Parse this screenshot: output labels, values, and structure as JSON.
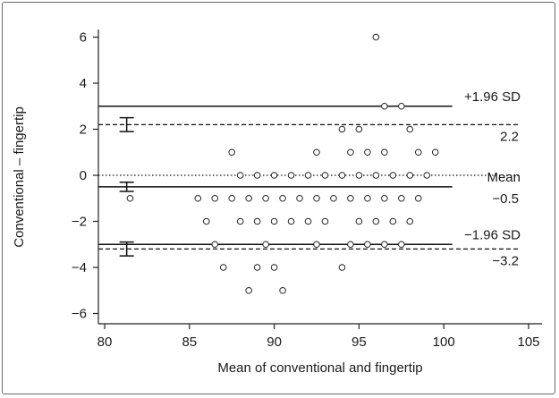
{
  "chart_data": {
    "type": "scatter",
    "title": "",
    "xlabel": "Mean of conventional and fingertip",
    "ylabel": "Conventional – fingertip",
    "xlim": [
      80,
      105
    ],
    "ylim": [
      -6.5,
      6.5
    ],
    "x_ticks": [
      80,
      85,
      90,
      95,
      100,
      105
    ],
    "y_ticks": [
      -6,
      -4,
      -2,
      0,
      2,
      4,
      6
    ],
    "x_tick_labels": [
      "80",
      "85",
      "90",
      "95",
      "100",
      "105"
    ],
    "y_tick_labels": [
      "−6",
      "−4",
      "−2",
      "0",
      "2",
      "4",
      "6"
    ],
    "grid": false,
    "series": [
      {
        "points": [
          {
            "x": 81.5,
            "y": -1
          },
          {
            "x": 96,
            "y": 6
          },
          {
            "x": 96.5,
            "y": 3
          },
          {
            "x": 97.5,
            "y": 3
          },
          {
            "x": 94,
            "y": 2
          },
          {
            "x": 95,
            "y": 2
          },
          {
            "x": 98,
            "y": 2
          },
          {
            "x": 87.5,
            "y": 1
          },
          {
            "x": 92.5,
            "y": 1
          },
          {
            "x": 94.5,
            "y": 1
          },
          {
            "x": 95.5,
            "y": 1
          },
          {
            "x": 96.5,
            "y": 1
          },
          {
            "x": 98.5,
            "y": 1
          },
          {
            "x": 99.5,
            "y": 1
          },
          {
            "x": 88,
            "y": 0
          },
          {
            "x": 89,
            "y": 0
          },
          {
            "x": 90,
            "y": 0
          },
          {
            "x": 91,
            "y": 0
          },
          {
            "x": 92,
            "y": 0
          },
          {
            "x": 93,
            "y": 0
          },
          {
            "x": 94,
            "y": 0
          },
          {
            "x": 95,
            "y": 0
          },
          {
            "x": 96,
            "y": 0
          },
          {
            "x": 97,
            "y": 0
          },
          {
            "x": 98,
            "y": 0
          },
          {
            "x": 99,
            "y": 0
          },
          {
            "x": 85.5,
            "y": -1
          },
          {
            "x": 86.5,
            "y": -1
          },
          {
            "x": 87.5,
            "y": -1
          },
          {
            "x": 88.5,
            "y": -1
          },
          {
            "x": 89.5,
            "y": -1
          },
          {
            "x": 90.5,
            "y": -1
          },
          {
            "x": 91.5,
            "y": -1
          },
          {
            "x": 92.5,
            "y": -1
          },
          {
            "x": 93.5,
            "y": -1
          },
          {
            "x": 94.5,
            "y": -1
          },
          {
            "x": 95.5,
            "y": -1
          },
          {
            "x": 96.5,
            "y": -1
          },
          {
            "x": 97.5,
            "y": -1
          },
          {
            "x": 98.5,
            "y": -1
          },
          {
            "x": 86,
            "y": -2
          },
          {
            "x": 88,
            "y": -2
          },
          {
            "x": 89,
            "y": -2
          },
          {
            "x": 90,
            "y": -2
          },
          {
            "x": 91,
            "y": -2
          },
          {
            "x": 92,
            "y": -2
          },
          {
            "x": 93,
            "y": -2
          },
          {
            "x": 95,
            "y": -2
          },
          {
            "x": 96,
            "y": -2
          },
          {
            "x": 97,
            "y": -2
          },
          {
            "x": 98,
            "y": -2
          },
          {
            "x": 86.5,
            "y": -3
          },
          {
            "x": 89.5,
            "y": -3
          },
          {
            "x": 92.5,
            "y": -3
          },
          {
            "x": 94.5,
            "y": -3
          },
          {
            "x": 95.5,
            "y": -3
          },
          {
            "x": 96.5,
            "y": -3
          },
          {
            "x": 97.5,
            "y": -3
          },
          {
            "x": 87,
            "y": -4
          },
          {
            "x": 89,
            "y": -4
          },
          {
            "x": 90,
            "y": -4
          },
          {
            "x": 94,
            "y": -4
          },
          {
            "x": 88.5,
            "y": -5
          },
          {
            "x": 90.5,
            "y": -5
          }
        ]
      }
    ],
    "reference_lines": [
      {
        "y": 3.0,
        "style": "solid",
        "label": "+1.96 SD"
      },
      {
        "y": 2.2,
        "style": "dashed",
        "label": "2.2"
      },
      {
        "y": 0,
        "style": "dotted",
        "label": ""
      },
      {
        "y": -0.5,
        "style": "solid",
        "label": "Mean"
      },
      {
        "y": -0.5,
        "style": "value",
        "label": "−0.5"
      },
      {
        "y": -3.0,
        "style": "solid",
        "label": "−1.96 SD"
      },
      {
        "y": -3.2,
        "style": "dashed",
        "label": "−3.2"
      }
    ],
    "confidence_intervals": [
      {
        "x": 81.3,
        "center": 2.2,
        "low": 1.9,
        "high": 2.5
      },
      {
        "x": 81.3,
        "center": -0.5,
        "low": -0.7,
        "high": -0.3
      },
      {
        "x": 81.3,
        "center": -3.2,
        "low": -3.5,
        "high": -2.9
      }
    ]
  }
}
